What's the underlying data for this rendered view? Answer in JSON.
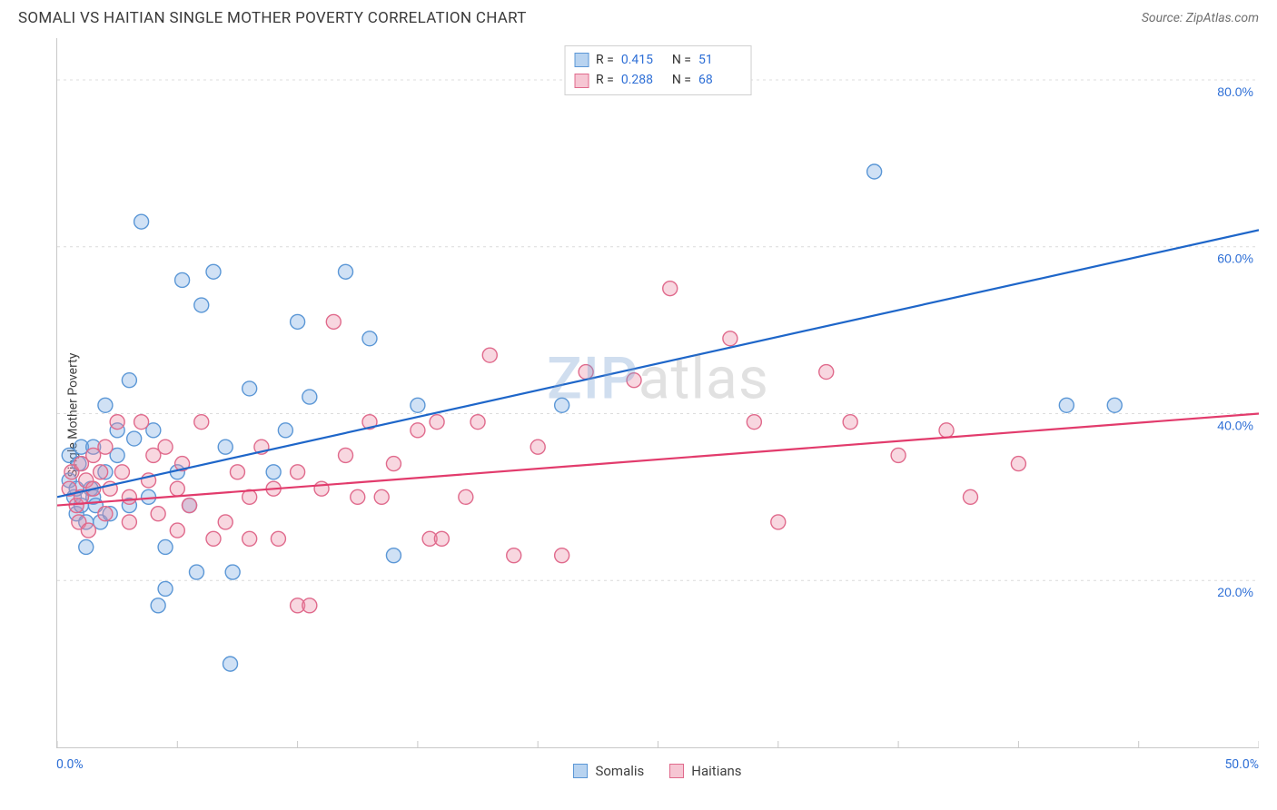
{
  "header": {
    "title": "SOMALI VS HAITIAN SINGLE MOTHER POVERTY CORRELATION CHART",
    "source": "Source: ZipAtlas.com"
  },
  "ylabel": "Single Mother Poverty",
  "watermark": {
    "first": "ZIP",
    "rest": "atlas"
  },
  "chart": {
    "type": "scatter",
    "xlim": [
      0,
      50
    ],
    "ylim": [
      0,
      85
    ],
    "x_ticks": [
      0,
      5,
      10,
      15,
      20,
      25,
      30,
      35,
      40,
      45,
      50
    ],
    "y_gridlines": [
      20,
      40,
      60,
      80
    ],
    "x_tick_label_left": "0.0%",
    "x_tick_label_right": "50.0%",
    "y_tick_labels": [
      "20.0%",
      "40.0%",
      "60.0%",
      "80.0%"
    ],
    "background_color": "#ffffff",
    "grid_color": "#dcdcdc",
    "grid_dash": "3,4",
    "axis_color": "#c8c8c8",
    "marker_radius": 8,
    "marker_stroke_width": 1.4,
    "line_width": 2.2,
    "series": [
      {
        "name": "Somalis",
        "fill": "rgba(120,170,225,0.35)",
        "stroke": "#5b97d6",
        "line_color": "#1e66c9",
        "swatch_fill": "#b8d3f0",
        "swatch_border": "#5b97d6",
        "R": "0.415",
        "N": "51",
        "trend": {
          "x1": 0,
          "y1": 30,
          "x2": 50,
          "y2": 62
        },
        "points": [
          [
            0.5,
            35
          ],
          [
            0.5,
            32
          ],
          [
            0.7,
            30
          ],
          [
            0.8,
            28
          ],
          [
            0.8,
            31
          ],
          [
            0.9,
            34
          ],
          [
            1,
            36
          ],
          [
            1,
            29
          ],
          [
            1.2,
            27
          ],
          [
            1.2,
            24
          ],
          [
            1.4,
            31
          ],
          [
            1.5,
            30
          ],
          [
            1.5,
            36
          ],
          [
            1.6,
            29
          ],
          [
            1.8,
            27
          ],
          [
            2,
            33
          ],
          [
            2,
            41
          ],
          [
            2.2,
            28
          ],
          [
            2.5,
            35
          ],
          [
            2.5,
            38
          ],
          [
            3,
            29
          ],
          [
            3,
            44
          ],
          [
            3.2,
            37
          ],
          [
            3.5,
            63
          ],
          [
            3.8,
            30
          ],
          [
            4,
            38
          ],
          [
            4.2,
            17
          ],
          [
            4.5,
            19
          ],
          [
            4.5,
            24
          ],
          [
            5,
            33
          ],
          [
            5.2,
            56
          ],
          [
            5.5,
            29
          ],
          [
            5.8,
            21
          ],
          [
            6,
            53
          ],
          [
            6.5,
            57
          ],
          [
            7,
            36
          ],
          [
            7.2,
            10
          ],
          [
            7.3,
            21
          ],
          [
            8,
            43
          ],
          [
            9,
            33
          ],
          [
            9.5,
            38
          ],
          [
            10,
            51
          ],
          [
            10.5,
            42
          ],
          [
            12,
            57
          ],
          [
            13,
            49
          ],
          [
            14,
            23
          ],
          [
            15,
            41
          ],
          [
            21,
            41
          ],
          [
            34,
            69
          ],
          [
            42,
            41
          ],
          [
            44,
            41
          ]
        ]
      },
      {
        "name": "Haitians",
        "fill": "rgba(235,140,165,0.35)",
        "stroke": "#e06a8c",
        "line_color": "#e23b6c",
        "swatch_fill": "#f6c6d3",
        "swatch_border": "#e06a8c",
        "R": "0.288",
        "N": "68",
        "trend": {
          "x1": 0,
          "y1": 29,
          "x2": 50,
          "y2": 40
        },
        "points": [
          [
            0.5,
            31
          ],
          [
            0.6,
            33
          ],
          [
            0.8,
            29
          ],
          [
            0.9,
            27
          ],
          [
            1,
            34
          ],
          [
            1,
            30
          ],
          [
            1.2,
            32
          ],
          [
            1.3,
            26
          ],
          [
            1.5,
            35
          ],
          [
            1.5,
            31
          ],
          [
            1.8,
            33
          ],
          [
            2,
            36
          ],
          [
            2,
            28
          ],
          [
            2.2,
            31
          ],
          [
            2.5,
            39
          ],
          [
            2.7,
            33
          ],
          [
            3,
            27
          ],
          [
            3,
            30
          ],
          [
            3.5,
            39
          ],
          [
            3.8,
            32
          ],
          [
            4,
            35
          ],
          [
            4.2,
            28
          ],
          [
            4.5,
            36
          ],
          [
            5,
            31
          ],
          [
            5,
            26
          ],
          [
            5.2,
            34
          ],
          [
            5.5,
            29
          ],
          [
            6,
            39
          ],
          [
            6.5,
            25
          ],
          [
            7,
            27
          ],
          [
            7.5,
            33
          ],
          [
            8,
            30
          ],
          [
            8,
            25
          ],
          [
            8.5,
            36
          ],
          [
            9,
            31
          ],
          [
            9.2,
            25
          ],
          [
            10,
            17
          ],
          [
            10,
            33
          ],
          [
            10.5,
            17
          ],
          [
            11,
            31
          ],
          [
            11.5,
            51
          ],
          [
            12,
            35
          ],
          [
            12.5,
            30
          ],
          [
            13,
            39
          ],
          [
            13.5,
            30
          ],
          [
            14,
            34
          ],
          [
            15,
            38
          ],
          [
            15.5,
            25
          ],
          [
            15.8,
            39
          ],
          [
            16,
            25
          ],
          [
            17,
            30
          ],
          [
            17.5,
            39
          ],
          [
            18,
            47
          ],
          [
            19,
            23
          ],
          [
            20,
            36
          ],
          [
            21,
            23
          ],
          [
            22,
            45
          ],
          [
            24,
            44
          ],
          [
            25.5,
            55
          ],
          [
            28,
            49
          ],
          [
            29,
            39
          ],
          [
            30,
            27
          ],
          [
            32,
            45
          ],
          [
            33,
            39
          ],
          [
            35,
            35
          ],
          [
            37,
            38
          ],
          [
            38,
            30
          ],
          [
            40,
            34
          ]
        ]
      }
    ]
  },
  "bottom_legend": [
    {
      "label": "Somalis",
      "fill": "#b8d3f0",
      "border": "#5b97d6"
    },
    {
      "label": "Haitians",
      "fill": "#f6c6d3",
      "border": "#e06a8c"
    }
  ]
}
